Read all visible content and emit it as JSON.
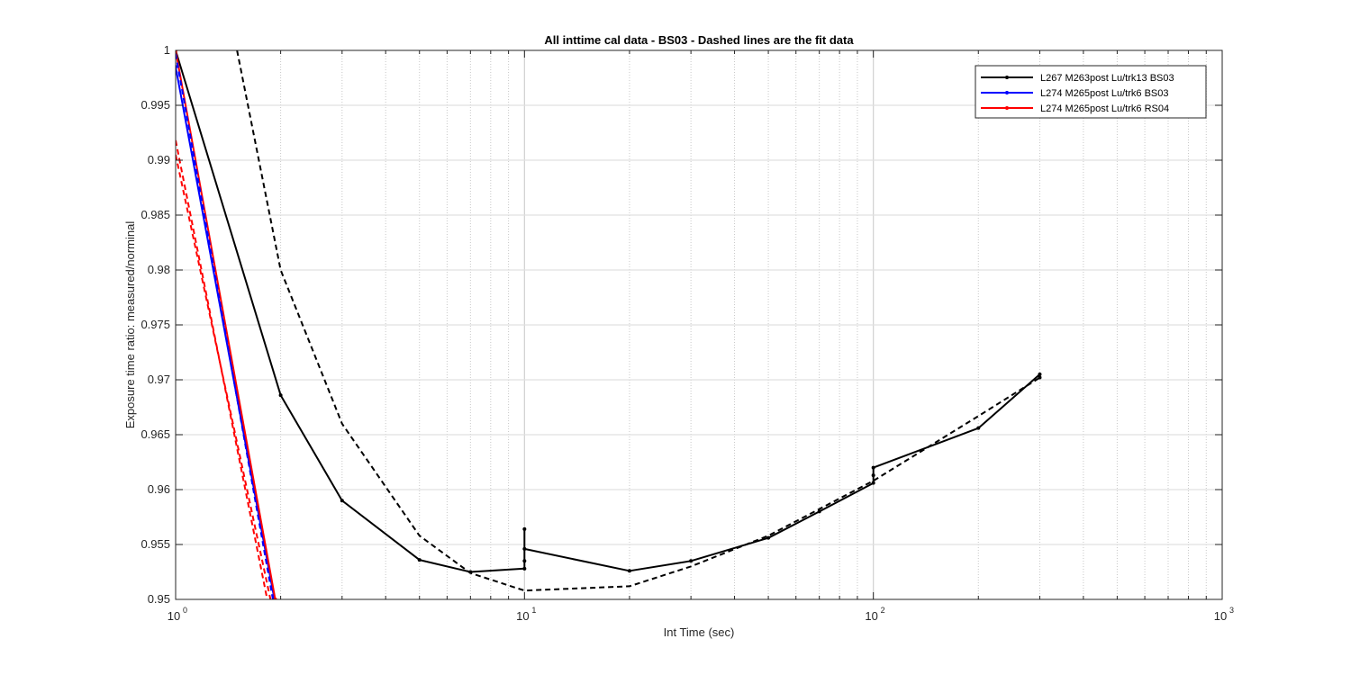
{
  "chart_data": {
    "type": "line",
    "title": "All inttime cal data - BS03 - Dashed lines are the fit data",
    "xlabel": "Int Time (sec)",
    "ylabel": "Exposure time ratio: measured/norminal",
    "xscale": "log",
    "xlim": [
      1,
      1000
    ],
    "ylim": [
      0.95,
      1
    ],
    "grid": true,
    "legend_position": "top-right",
    "x_ticks": [
      {
        "value": 1,
        "base": "10",
        "exp": "0"
      },
      {
        "value": 10,
        "base": "10",
        "exp": "1"
      },
      {
        "value": 100,
        "base": "10",
        "exp": "2"
      },
      {
        "value": 1000,
        "base": "10",
        "exp": "3"
      }
    ],
    "y_ticks": [
      "0.95",
      "0.955",
      "0.96",
      "0.965",
      "0.97",
      "0.975",
      "0.98",
      "0.985",
      "0.99",
      "0.995",
      "1"
    ],
    "series": [
      {
        "name": "L267 M263post Lu/trk13 BS03",
        "color": "#000000",
        "style": "solid",
        "markers": true,
        "points": [
          [
            1,
            1.0
          ],
          [
            2,
            0.9686
          ],
          [
            3,
            0.959
          ],
          [
            5,
            0.9536
          ],
          [
            7,
            0.9525
          ],
          [
            10,
            0.9528
          ],
          [
            10,
            0.9564
          ],
          [
            10,
            0.9535
          ],
          [
            10,
            0.9546
          ],
          [
            20,
            0.9526
          ],
          [
            30,
            0.9535
          ],
          [
            50,
            0.9556
          ],
          [
            70,
            0.958
          ],
          [
            100,
            0.9606
          ],
          [
            100,
            0.9613
          ],
          [
            100,
            0.962
          ],
          [
            200,
            0.9656
          ],
          [
            300,
            0.9705
          ],
          [
            300,
            0.9702
          ]
        ]
      },
      {
        "name": "L274 M265post Lu/trk6 BS03",
        "color": "#0000ff",
        "style": "solid",
        "markers": true,
        "points": [
          [
            1,
            0.9985
          ],
          [
            1.92,
            0.95
          ]
        ]
      },
      {
        "name": "L274 M265post Lu/trk6 RS04",
        "color": "#ff0000",
        "style": "solid",
        "markers": true,
        "points": [
          [
            1,
            1.0
          ],
          [
            1.93,
            0.95
          ]
        ]
      },
      {
        "name": "",
        "color": "#000000",
        "style": "dashed",
        "markers": false,
        "points": [
          [
            1.5,
            1.0
          ],
          [
            2,
            0.98
          ],
          [
            3,
            0.966
          ],
          [
            5,
            0.9558
          ],
          [
            7,
            0.9524
          ],
          [
            10,
            0.9508
          ],
          [
            20,
            0.9512
          ],
          [
            30,
            0.953
          ],
          [
            50,
            0.9558
          ],
          [
            100,
            0.9608
          ],
          [
            200,
            0.9667
          ],
          [
            300,
            0.9702
          ]
        ]
      },
      {
        "name": "",
        "color": "#0000ff",
        "style": "dashed",
        "markers": false,
        "points": [
          [
            1,
            0.9997
          ],
          [
            1.9,
            0.95
          ]
        ]
      },
      {
        "name": "",
        "color": "#ff0000",
        "style": "dashed",
        "markers": false,
        "points": [
          [
            1,
            0.9918
          ],
          [
            1.83,
            0.95
          ]
        ]
      },
      {
        "name": "",
        "color": "#ff0000",
        "style": "dashed",
        "markers": false,
        "points": [
          [
            1,
            0.9905
          ],
          [
            1.87,
            0.95
          ]
        ]
      }
    ]
  }
}
